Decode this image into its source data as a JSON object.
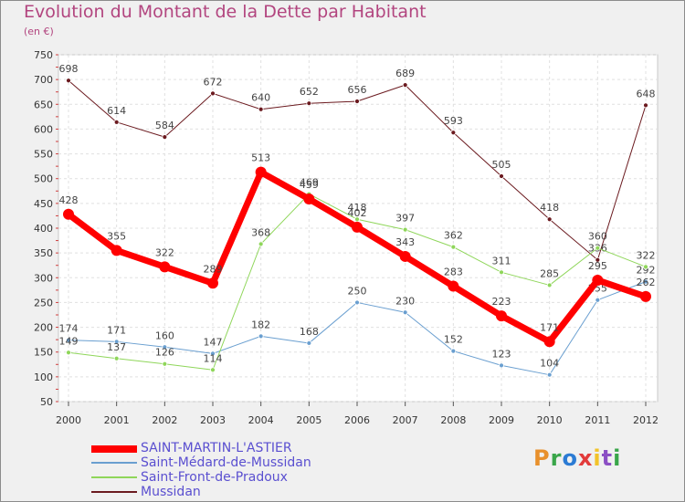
{
  "header": {
    "title": "Evolution du Montant de la Dette par Habitant",
    "unit": "(en €)"
  },
  "logo": {
    "text": "Proxiti",
    "colors": [
      "#e8902c",
      "#3aa64a",
      "#2c7bd4",
      "#e23b3b",
      "#f2c32a",
      "#8b4fc4",
      "#3aa64a"
    ]
  },
  "chart_data": {
    "type": "line",
    "categories": [
      "2000",
      "2001",
      "2002",
      "2003",
      "2004",
      "2005",
      "2006",
      "2007",
      "2008",
      "2009",
      "2010",
      "2011",
      "2012"
    ],
    "ylim": [
      50,
      750
    ],
    "yticks": [
      50,
      100,
      150,
      200,
      250,
      300,
      350,
      400,
      450,
      500,
      550,
      600,
      650,
      700,
      750
    ],
    "grid": true,
    "legend_position": "bottom-left",
    "series": [
      {
        "name": "Mussidan",
        "color": "#6b1a1f",
        "width": 1,
        "marker": 5,
        "values": [
          698,
          614,
          584,
          672,
          640,
          652,
          656,
          689,
          593,
          505,
          418,
          336,
          648
        ]
      },
      {
        "name": "Saint-Médard-de-Mussidan",
        "color": "#6a9fd0",
        "width": 1,
        "marker": 5,
        "values": [
          174,
          171,
          160,
          147,
          182,
          168,
          250,
          230,
          152,
          123,
          104,
          255,
          292
        ]
      },
      {
        "name": "Saint-Front-de-Pradoux",
        "color": "#8fd65a",
        "width": 1,
        "marker": 5,
        "values": [
          149,
          137,
          126,
          114,
          368,
          469,
          418,
          397,
          362,
          311,
          285,
          360,
          322
        ]
      },
      {
        "name": "SAINT-MARTIN-L'ASTIER",
        "color": "#ff0000",
        "width": 7,
        "marker": 12,
        "values": [
          428,
          355,
          322,
          289,
          513,
          459,
          402,
          343,
          283,
          223,
          171,
          295,
          262
        ]
      }
    ],
    "legend_order": [
      3,
      1,
      2,
      0
    ]
  }
}
